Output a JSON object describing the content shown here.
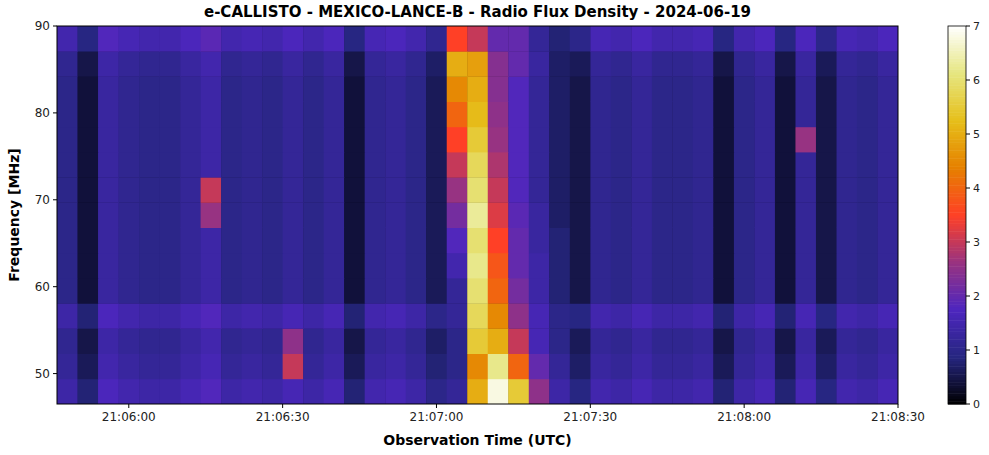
{
  "chart_data": {
    "type": "heatmap",
    "title": "e-CALLISTO - MEXICO-LANCE-B - Radio Flux Density - 2024-06-19",
    "x_label": "Observation Time (UTC)",
    "y_label": "Frequency [MHz]",
    "xlim": [
      75946,
      76110
    ],
    "ylim": [
      46.5,
      90
    ],
    "xticks": [
      {
        "value": 75960,
        "label": "21:06:00"
      },
      {
        "value": 75990,
        "label": "21:06:30"
      },
      {
        "value": 76020,
        "label": "21:07:00"
      },
      {
        "value": 76050,
        "label": "21:07:30"
      },
      {
        "value": 76080,
        "label": "21:08:00"
      },
      {
        "value": 76110,
        "label": "21:08:30"
      }
    ],
    "yticks": [
      50,
      60,
      70,
      80,
      90
    ],
    "x_bins": [
      75946,
      75950,
      75954,
      75958,
      75962,
      75966,
      75970,
      75974,
      75978,
      75982,
      75986,
      75990,
      75994,
      75998,
      76002,
      76006,
      76010,
      76014,
      76018,
      76022,
      76026,
      76030,
      76034,
      76038,
      76042,
      76046,
      76050,
      76054,
      76058,
      76062,
      76066,
      76070,
      76074,
      76078,
      76082,
      76086,
      76090,
      76094,
      76098,
      76102,
      76106,
      76110
    ],
    "y_bins": [
      46.5,
      49.4,
      52.3,
      55.2,
      58.1,
      61.0,
      63.9,
      66.8,
      69.7,
      72.6,
      75.5,
      78.4,
      81.3,
      84.2,
      87.1,
      90.0
    ],
    "cells": [
      [
        1.4,
        0.8,
        1.7,
        1.5,
        1.4,
        1.4,
        1.6,
        1.8,
        1.4,
        1.5,
        1.4,
        1.6,
        1.4,
        1.6,
        0.8,
        1.5,
        1.6,
        1.4,
        1.0,
        1.2,
        5.0,
        6.8,
        5.5,
        2.5,
        1.4,
        0.9,
        1.5,
        1.4,
        1.6,
        1.4,
        1.4,
        1.5,
        0.8,
        1.4,
        1.6,
        0.8,
        1.6,
        0.9,
        1.5,
        1.4,
        1.6
      ],
      [
        1.2,
        0.6,
        1.5,
        1.3,
        1.2,
        1.2,
        1.4,
        1.6,
        1.2,
        1.3,
        1.2,
        3.0,
        1.2,
        1.4,
        0.6,
        1.3,
        1.4,
        1.2,
        0.8,
        1.0,
        4.5,
        6.2,
        4.0,
        2.0,
        1.2,
        0.7,
        1.3,
        1.2,
        1.4,
        1.2,
        1.2,
        1.3,
        0.6,
        1.2,
        1.4,
        0.6,
        1.4,
        0.7,
        1.3,
        1.2,
        1.4
      ],
      [
        1.1,
        0.5,
        1.4,
        1.2,
        1.1,
        1.1,
        1.3,
        1.5,
        1.1,
        1.2,
        1.1,
        2.5,
        1.1,
        1.3,
        0.5,
        1.2,
        1.3,
        1.1,
        0.7,
        1.0,
        5.5,
        5.0,
        3.0,
        1.6,
        1.0,
        0.6,
        1.2,
        1.1,
        1.3,
        1.1,
        1.1,
        1.2,
        0.5,
        1.1,
        1.3,
        0.5,
        1.3,
        0.6,
        1.2,
        1.1,
        1.3
      ],
      [
        1.4,
        0.8,
        1.7,
        1.5,
        1.4,
        1.4,
        1.6,
        1.8,
        1.4,
        1.5,
        1.4,
        1.6,
        1.4,
        1.6,
        0.8,
        1.5,
        1.6,
        1.4,
        1.0,
        1.2,
        5.8,
        4.5,
        2.5,
        1.6,
        1.0,
        0.9,
        1.5,
        1.4,
        1.6,
        1.4,
        1.4,
        1.5,
        0.8,
        1.4,
        1.6,
        0.8,
        1.6,
        0.9,
        1.5,
        1.4,
        1.6
      ],
      [
        1.0,
        0.4,
        1.3,
        1.1,
        1.0,
        1.0,
        1.2,
        1.4,
        1.0,
        1.1,
        1.0,
        1.2,
        1.0,
        1.2,
        0.4,
        1.1,
        1.2,
        1.0,
        0.6,
        1.2,
        6.0,
        4.0,
        2.2,
        1.4,
        0.8,
        0.5,
        1.1,
        1.0,
        1.2,
        1.0,
        1.0,
        1.1,
        0.4,
        1.0,
        1.2,
        0.4,
        1.2,
        0.5,
        1.1,
        1.0,
        1.2
      ],
      [
        1.0,
        0.4,
        1.3,
        1.1,
        1.0,
        1.0,
        1.2,
        1.4,
        1.0,
        1.1,
        1.0,
        1.2,
        1.0,
        1.2,
        0.4,
        1.1,
        1.2,
        1.0,
        0.6,
        1.5,
        6.2,
        3.8,
        2.0,
        1.4,
        0.8,
        0.5,
        1.1,
        1.0,
        1.2,
        1.0,
        1.0,
        1.1,
        0.4,
        1.0,
        1.2,
        0.4,
        1.2,
        0.5,
        1.1,
        1.0,
        1.2
      ],
      [
        1.0,
        0.4,
        1.3,
        1.1,
        1.0,
        1.0,
        1.2,
        1.4,
        1.0,
        1.1,
        1.0,
        1.2,
        1.0,
        1.2,
        0.4,
        1.1,
        1.2,
        1.0,
        0.6,
        1.8,
        6.0,
        3.5,
        2.0,
        1.3,
        0.8,
        0.5,
        1.1,
        1.0,
        1.2,
        1.0,
        1.0,
        1.1,
        0.4,
        1.0,
        1.2,
        0.4,
        1.2,
        0.5,
        1.1,
        1.0,
        1.2
      ],
      [
        1.0,
        0.4,
        1.3,
        1.1,
        1.0,
        1.0,
        1.2,
        2.6,
        1.0,
        1.1,
        1.0,
        1.2,
        1.0,
        1.2,
        0.4,
        1.1,
        1.2,
        1.0,
        0.6,
        2.2,
        6.3,
        3.2,
        1.9,
        1.3,
        0.7,
        0.5,
        1.1,
        1.0,
        1.2,
        1.0,
        1.0,
        1.1,
        0.4,
        1.0,
        1.2,
        0.4,
        1.2,
        0.5,
        1.1,
        1.0,
        1.2
      ],
      [
        1.0,
        0.4,
        1.3,
        1.1,
        1.0,
        1.0,
        1.2,
        3.0,
        1.0,
        1.1,
        1.0,
        1.2,
        1.0,
        1.2,
        0.4,
        1.1,
        1.2,
        1.0,
        0.6,
        2.6,
        6.0,
        3.0,
        1.8,
        1.2,
        0.7,
        0.5,
        1.1,
        1.0,
        1.2,
        1.0,
        1.0,
        1.1,
        0.4,
        1.0,
        1.2,
        0.4,
        1.2,
        0.5,
        1.1,
        1.0,
        1.2
      ],
      [
        1.0,
        0.4,
        1.3,
        1.1,
        1.0,
        1.0,
        1.2,
        1.4,
        1.0,
        1.1,
        1.0,
        1.2,
        1.0,
        1.2,
        0.4,
        1.1,
        1.2,
        1.0,
        0.6,
        3.0,
        5.8,
        2.8,
        1.8,
        1.2,
        0.7,
        0.5,
        1.1,
        1.0,
        1.2,
        1.0,
        1.0,
        1.1,
        0.4,
        1.0,
        1.2,
        0.4,
        1.2,
        0.5,
        1.1,
        1.0,
        1.2
      ],
      [
        1.0,
        0.4,
        1.3,
        1.1,
        1.0,
        1.0,
        1.2,
        1.4,
        1.0,
        1.1,
        1.0,
        1.2,
        1.0,
        1.2,
        0.4,
        1.1,
        1.2,
        1.0,
        0.6,
        3.5,
        5.5,
        2.6,
        1.8,
        1.2,
        0.7,
        0.5,
        1.1,
        1.0,
        1.2,
        1.0,
        1.0,
        1.1,
        0.4,
        1.0,
        1.2,
        0.4,
        2.6,
        0.5,
        1.1,
        1.0,
        1.2
      ],
      [
        1.0,
        0.4,
        1.3,
        1.1,
        1.0,
        1.0,
        1.2,
        1.4,
        1.0,
        1.1,
        1.0,
        1.2,
        1.0,
        1.2,
        0.4,
        1.1,
        1.2,
        1.0,
        0.6,
        4.0,
        5.2,
        2.5,
        1.8,
        1.2,
        0.7,
        0.5,
        1.1,
        1.0,
        1.2,
        1.0,
        1.0,
        1.1,
        0.4,
        1.0,
        1.2,
        0.4,
        1.2,
        0.5,
        1.1,
        1.0,
        1.2
      ],
      [
        1.0,
        0.4,
        1.3,
        1.1,
        1.0,
        1.0,
        1.2,
        1.4,
        1.0,
        1.1,
        1.0,
        1.2,
        1.0,
        1.2,
        0.4,
        1.1,
        1.2,
        1.0,
        0.6,
        4.5,
        5.0,
        2.4,
        1.8,
        1.2,
        0.7,
        0.5,
        1.1,
        1.0,
        1.2,
        1.0,
        1.0,
        1.1,
        0.4,
        1.0,
        1.2,
        0.4,
        1.2,
        0.5,
        1.1,
        1.0,
        1.2
      ],
      [
        1.1,
        0.5,
        1.4,
        1.2,
        1.1,
        1.1,
        1.3,
        1.5,
        1.1,
        1.2,
        1.1,
        1.3,
        1.1,
        1.3,
        0.5,
        1.2,
        1.3,
        1.1,
        0.7,
        5.0,
        4.8,
        2.4,
        2.0,
        1.3,
        0.7,
        0.6,
        1.2,
        1.1,
        1.3,
        1.1,
        1.1,
        1.2,
        0.5,
        1.1,
        1.3,
        0.5,
        1.3,
        0.6,
        1.2,
        1.1,
        1.3
      ],
      [
        1.5,
        0.9,
        1.8,
        1.6,
        1.5,
        1.5,
        1.7,
        1.9,
        1.5,
        1.6,
        1.5,
        1.7,
        1.5,
        1.7,
        0.9,
        1.6,
        1.7,
        1.5,
        1.1,
        3.5,
        3.0,
        2.0,
        2.0,
        1.2,
        0.8,
        1.0,
        1.6,
        1.5,
        1.7,
        1.5,
        1.5,
        1.6,
        0.9,
        1.5,
        1.7,
        0.9,
        1.7,
        1.0,
        1.6,
        1.5,
        1.7
      ]
    ],
    "color_range": [
      0,
      7
    ],
    "color_ticks": [
      0,
      1,
      2,
      3,
      4,
      5,
      6,
      7
    ]
  }
}
